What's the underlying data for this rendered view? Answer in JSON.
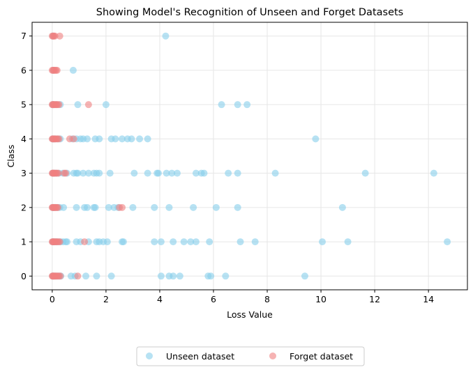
{
  "chart_data": {
    "type": "scatter",
    "title": "Showing Model's Recognition of Unseen and Forget Datasets",
    "xlabel": "Loss Value",
    "ylabel": "Class",
    "xlim": [
      -0.75,
      15.45
    ],
    "ylim": [
      -0.4,
      7.4
    ],
    "xticks": [
      0,
      2,
      4,
      6,
      8,
      10,
      12,
      14
    ],
    "yticks": [
      0,
      1,
      2,
      3,
      4,
      5,
      6,
      7
    ],
    "grid": true,
    "legend": {
      "placement": "bottom-center",
      "columns": 2
    },
    "series": [
      {
        "name": "Unseen dataset",
        "color": "#87ceeb",
        "alpha": 0.6,
        "points": [
          [
            0.02,
            0
          ],
          [
            0.06,
            0
          ],
          [
            0.12,
            0
          ],
          [
            0.18,
            0
          ],
          [
            0.25,
            0
          ],
          [
            0.32,
            0
          ],
          [
            0.7,
            0
          ],
          [
            0.85,
            0
          ],
          [
            1.25,
            0
          ],
          [
            1.65,
            0
          ],
          [
            2.2,
            0
          ],
          [
            4.05,
            0
          ],
          [
            4.35,
            0
          ],
          [
            4.5,
            0
          ],
          [
            4.75,
            0
          ],
          [
            5.8,
            0
          ],
          [
            5.9,
            0
          ],
          [
            6.45,
            0
          ],
          [
            9.4,
            0
          ],
          [
            0.02,
            1
          ],
          [
            0.05,
            1
          ],
          [
            0.1,
            1
          ],
          [
            0.15,
            1
          ],
          [
            0.2,
            1
          ],
          [
            0.3,
            1
          ],
          [
            0.4,
            1
          ],
          [
            0.5,
            1
          ],
          [
            0.55,
            1
          ],
          [
            0.9,
            1
          ],
          [
            1.05,
            1
          ],
          [
            1.35,
            1
          ],
          [
            1.65,
            1
          ],
          [
            1.75,
            1
          ],
          [
            1.9,
            1
          ],
          [
            2.05,
            1
          ],
          [
            2.6,
            1
          ],
          [
            2.65,
            1
          ],
          [
            3.8,
            1
          ],
          [
            4.05,
            1
          ],
          [
            4.5,
            1
          ],
          [
            4.9,
            1
          ],
          [
            5.15,
            1
          ],
          [
            5.35,
            1
          ],
          [
            5.85,
            1
          ],
          [
            7.0,
            1
          ],
          [
            7.55,
            1
          ],
          [
            10.05,
            1
          ],
          [
            11.0,
            1
          ],
          [
            14.7,
            1
          ],
          [
            0.02,
            2
          ],
          [
            0.06,
            2
          ],
          [
            0.12,
            2
          ],
          [
            0.2,
            2
          ],
          [
            0.28,
            2
          ],
          [
            0.42,
            2
          ],
          [
            0.9,
            2
          ],
          [
            1.2,
            2
          ],
          [
            1.3,
            2
          ],
          [
            1.55,
            2
          ],
          [
            1.6,
            2
          ],
          [
            2.1,
            2
          ],
          [
            2.3,
            2
          ],
          [
            2.45,
            2
          ],
          [
            3.0,
            2
          ],
          [
            3.8,
            2
          ],
          [
            4.35,
            2
          ],
          [
            5.25,
            2
          ],
          [
            6.1,
            2
          ],
          [
            6.9,
            2
          ],
          [
            10.8,
            2
          ],
          [
            0.02,
            3
          ],
          [
            0.05,
            3
          ],
          [
            0.1,
            3
          ],
          [
            0.15,
            3
          ],
          [
            0.25,
            3
          ],
          [
            0.4,
            3
          ],
          [
            0.55,
            3
          ],
          [
            0.8,
            3
          ],
          [
            0.9,
            3
          ],
          [
            0.95,
            3
          ],
          [
            1.15,
            3
          ],
          [
            1.35,
            3
          ],
          [
            1.55,
            3
          ],
          [
            1.65,
            3
          ],
          [
            1.75,
            3
          ],
          [
            2.15,
            3
          ],
          [
            3.05,
            3
          ],
          [
            3.55,
            3
          ],
          [
            3.9,
            3
          ],
          [
            3.95,
            3
          ],
          [
            4.25,
            3
          ],
          [
            4.45,
            3
          ],
          [
            4.65,
            3
          ],
          [
            5.35,
            3
          ],
          [
            5.55,
            3
          ],
          [
            5.65,
            3
          ],
          [
            6.55,
            3
          ],
          [
            6.9,
            3
          ],
          [
            8.3,
            3
          ],
          [
            11.65,
            3
          ],
          [
            14.2,
            3
          ],
          [
            0.02,
            4
          ],
          [
            0.05,
            4
          ],
          [
            0.1,
            4
          ],
          [
            0.2,
            4
          ],
          [
            0.3,
            4
          ],
          [
            0.75,
            4
          ],
          [
            0.9,
            4
          ],
          [
            1.05,
            4
          ],
          [
            1.15,
            4
          ],
          [
            1.3,
            4
          ],
          [
            1.6,
            4
          ],
          [
            1.75,
            4
          ],
          [
            2.2,
            4
          ],
          [
            2.35,
            4
          ],
          [
            2.6,
            4
          ],
          [
            2.8,
            4
          ],
          [
            2.95,
            4
          ],
          [
            3.25,
            4
          ],
          [
            3.55,
            4
          ],
          [
            9.8,
            4
          ],
          [
            0.02,
            5
          ],
          [
            0.05,
            5
          ],
          [
            0.15,
            5
          ],
          [
            0.3,
            5
          ],
          [
            0.95,
            5
          ],
          [
            2.0,
            5
          ],
          [
            6.3,
            5
          ],
          [
            6.9,
            5
          ],
          [
            7.25,
            5
          ],
          [
            0.05,
            6
          ],
          [
            0.78,
            6
          ],
          [
            0.03,
            7
          ],
          [
            4.22,
            7
          ]
        ]
      },
      {
        "name": "Forget dataset",
        "color": "#f08080",
        "alpha": 0.6,
        "points": [
          [
            0.0,
            0
          ],
          [
            0.02,
            0
          ],
          [
            0.04,
            0
          ],
          [
            0.06,
            0
          ],
          [
            0.09,
            0
          ],
          [
            0.12,
            0
          ],
          [
            0.16,
            0
          ],
          [
            0.2,
            0
          ],
          [
            0.25,
            0
          ],
          [
            0.3,
            0
          ],
          [
            0.95,
            0
          ],
          [
            0.0,
            1
          ],
          [
            0.02,
            1
          ],
          [
            0.04,
            1
          ],
          [
            0.07,
            1
          ],
          [
            0.1,
            1
          ],
          [
            0.14,
            1
          ],
          [
            0.18,
            1
          ],
          [
            0.23,
            1
          ],
          [
            0.28,
            1
          ],
          [
            1.2,
            1
          ],
          [
            0.0,
            2
          ],
          [
            0.02,
            2
          ],
          [
            0.04,
            2
          ],
          [
            0.07,
            2
          ],
          [
            0.1,
            2
          ],
          [
            0.13,
            2
          ],
          [
            0.17,
            2
          ],
          [
            0.21,
            2
          ],
          [
            2.5,
            2
          ],
          [
            2.6,
            2
          ],
          [
            0.0,
            3
          ],
          [
            0.02,
            3
          ],
          [
            0.04,
            3
          ],
          [
            0.07,
            3
          ],
          [
            0.1,
            3
          ],
          [
            0.14,
            3
          ],
          [
            0.18,
            3
          ],
          [
            0.22,
            3
          ],
          [
            0.45,
            3
          ],
          [
            0.5,
            3
          ],
          [
            0.0,
            4
          ],
          [
            0.02,
            4
          ],
          [
            0.05,
            4
          ],
          [
            0.08,
            4
          ],
          [
            0.11,
            4
          ],
          [
            0.15,
            4
          ],
          [
            0.2,
            4
          ],
          [
            0.25,
            4
          ],
          [
            0.65,
            4
          ],
          [
            0.8,
            4
          ],
          [
            0.0,
            5
          ],
          [
            0.02,
            5
          ],
          [
            0.05,
            5
          ],
          [
            0.08,
            5
          ],
          [
            0.12,
            5
          ],
          [
            0.16,
            5
          ],
          [
            0.2,
            5
          ],
          [
            0.25,
            5
          ],
          [
            1.35,
            5
          ],
          [
            0.0,
            6
          ],
          [
            0.03,
            6
          ],
          [
            0.06,
            6
          ],
          [
            0.1,
            6
          ],
          [
            0.14,
            6
          ],
          [
            0.18,
            6
          ],
          [
            0.0,
            7
          ],
          [
            0.03,
            7
          ],
          [
            0.06,
            7
          ],
          [
            0.1,
            7
          ],
          [
            0.28,
            7
          ]
        ]
      }
    ]
  }
}
